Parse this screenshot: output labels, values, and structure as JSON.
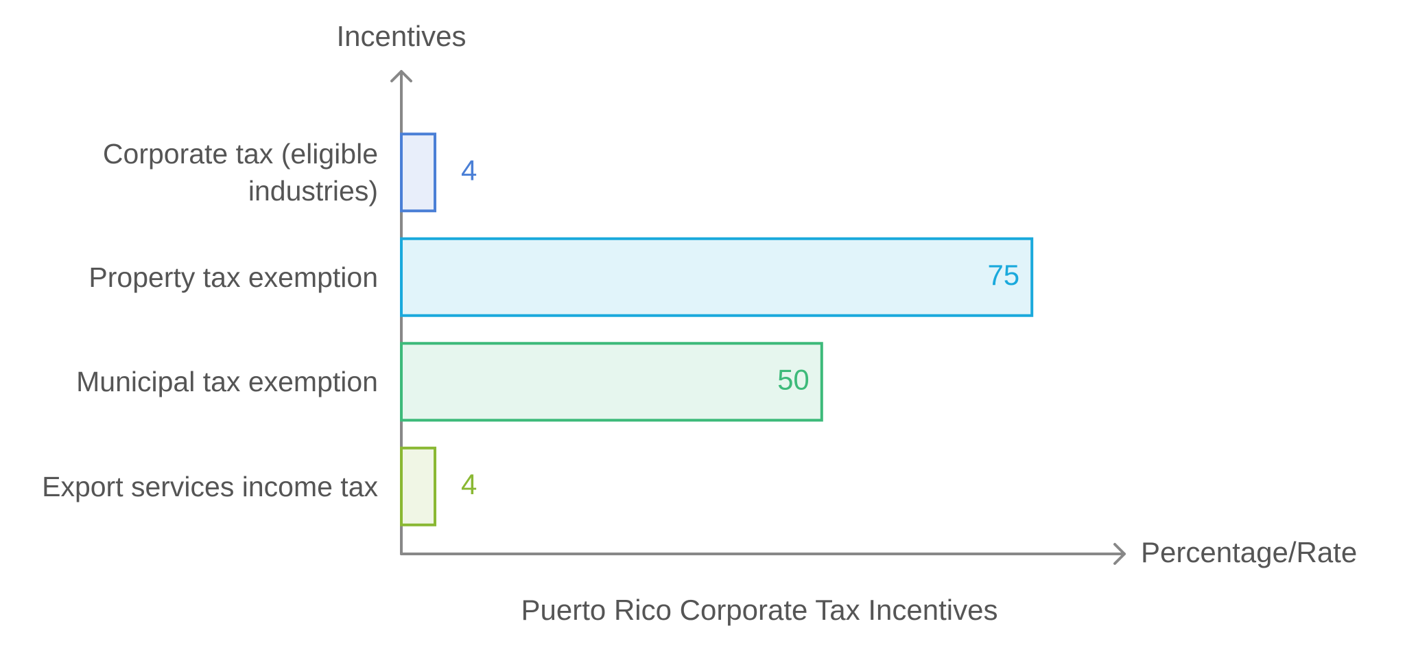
{
  "chart_data": {
    "type": "bar",
    "orientation": "horizontal",
    "title": "Puerto Rico Corporate Tax Incentives",
    "y_label": "Incentives",
    "x_label": "Percentage/Rate",
    "categories": [
      "Corporate tax (eligible industries)",
      "Property tax exemption",
      "Municipal tax exemption",
      "Export services income tax"
    ],
    "values": [
      4,
      75,
      50,
      4
    ],
    "colors": [
      "#4a7fd6",
      "#1aa9dc",
      "#3dba7a",
      "#8ab833"
    ],
    "xlim": [
      0,
      86
    ]
  }
}
